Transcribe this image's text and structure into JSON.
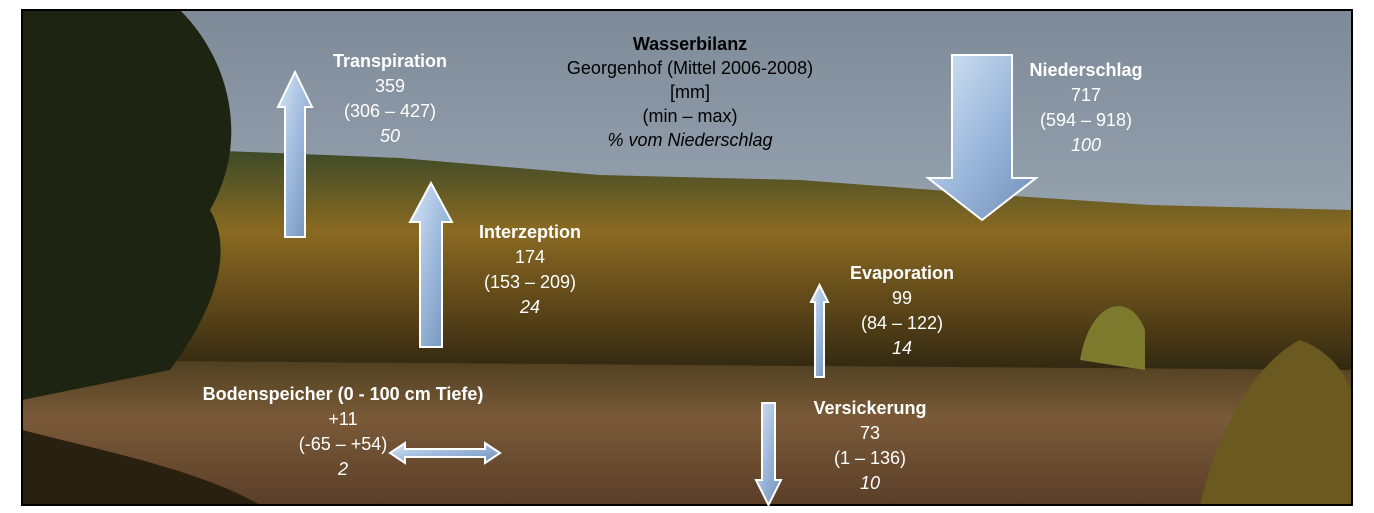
{
  "header": {
    "title": "Wasserbilanz",
    "lines": [
      "Georgenhof (Mittel 2006-2008)",
      "[mm]",
      "(min – max)",
      "% vom Niederschlag"
    ]
  },
  "flows": [
    {
      "name": "Transpiration",
      "value": "359",
      "range": "(306 – 427)",
      "percent": "50"
    },
    {
      "name": "Niederschlag",
      "value": "717",
      "range": "(594 – 918)",
      "percent": "100"
    },
    {
      "name": "Interzeption",
      "value": "174",
      "range": "(153 – 209)",
      "percent": "24"
    },
    {
      "name": "Evaporation",
      "value": "99",
      "range": "(84 – 122)",
      "percent": "14"
    },
    {
      "name": "Bodenspeicher (0 - 100 cm Tiefe)",
      "value": "+11",
      "range": "(-65 – +54)",
      "percent": "2"
    },
    {
      "name": "Versickerung",
      "value": "73",
      "range": "(1 – 136)",
      "percent": "10"
    }
  ]
}
